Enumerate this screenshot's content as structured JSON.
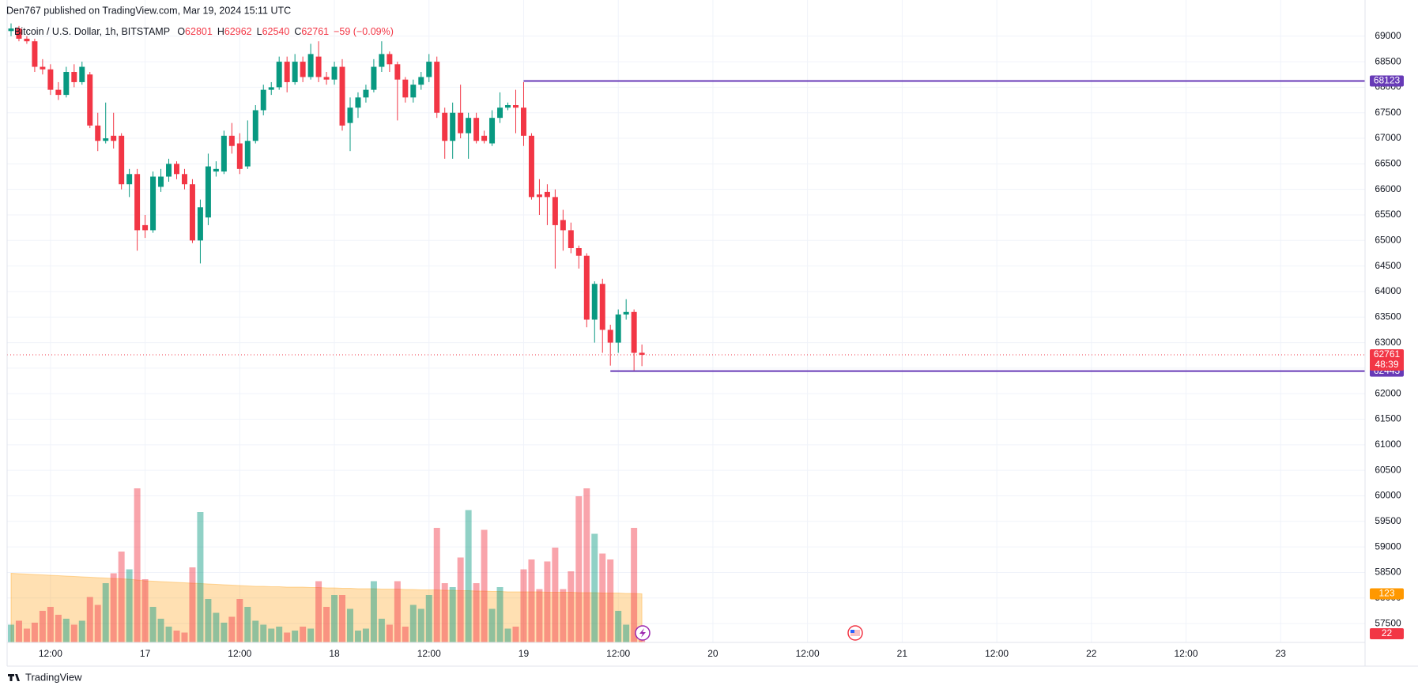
{
  "chart_data": {
    "type": "candlestick",
    "attribution": "Den767 published on TradingView.com, Mar 19, 2024 15:11 UTC",
    "title": "Bitcoin / U.S. Dollar, 1h, BITSTAMP",
    "ohlc_prefixes": [
      "O",
      "H",
      "L",
      "C"
    ],
    "change": "−59 (−0.09%)",
    "countdown": "48:39",
    "brand": "TradingView",
    "up_color": "#089981",
    "down_color": "#f23645",
    "ma_color": "#ff9800",
    "grid": true,
    "xlim": [
      6.5,
      178.7
    ],
    "xticks": [
      {
        "value": 12,
        "label": "12:00"
      },
      {
        "value": 24,
        "label": "17"
      },
      {
        "value": 36,
        "label": "12:00"
      },
      {
        "value": 48,
        "label": "18"
      },
      {
        "value": 60,
        "label": "12:00"
      },
      {
        "value": 72,
        "label": "19"
      },
      {
        "value": 84,
        "label": "12:00"
      },
      {
        "value": 96,
        "label": "20"
      },
      {
        "value": 108,
        "label": "12:00"
      },
      {
        "value": 120,
        "label": "21"
      },
      {
        "value": 132,
        "label": "12:00"
      },
      {
        "value": 144,
        "label": "22"
      },
      {
        "value": 156,
        "label": "12:00"
      },
      {
        "value": 168,
        "label": "23"
      }
    ],
    "ylim": [
      57130,
      69708
    ],
    "yticks": [
      57500,
      58000,
      58500,
      59000,
      59500,
      60000,
      60500,
      61000,
      61500,
      62000,
      62500,
      63000,
      63500,
      64000,
      64500,
      65000,
      65500,
      66000,
      66500,
      67000,
      67500,
      68000,
      68500,
      69000
    ],
    "vlim": [
      0,
      420
    ],
    "hlines": [
      {
        "value": 68123,
        "from": 72,
        "color": "#673ab7"
      },
      {
        "value": 62443,
        "from": 83,
        "color": "#673ab7"
      }
    ],
    "x": [
      7,
      8,
      9,
      10,
      11,
      12,
      13,
      14,
      15,
      16,
      17,
      18,
      19,
      20,
      21,
      22,
      23,
      24,
      25,
      26,
      27,
      28,
      29,
      30,
      31,
      32,
      33,
      34,
      35,
      36,
      37,
      38,
      39,
      40,
      41,
      42,
      43,
      44,
      45,
      46,
      47,
      48,
      49,
      50,
      51,
      52,
      53,
      54,
      55,
      56,
      57,
      58,
      59,
      60,
      61,
      62,
      63,
      64,
      65,
      66,
      67,
      68,
      69,
      70,
      71,
      72,
      73,
      74,
      75,
      76,
      77,
      78,
      79,
      80,
      81,
      82,
      83,
      84,
      85,
      86,
      87
    ],
    "ohlc": [
      [
        69100,
        69250,
        69000,
        69150
      ],
      [
        69150,
        69200,
        68900,
        68950
      ],
      [
        68950,
        69000,
        68850,
        68900
      ],
      [
        68900,
        68950,
        68300,
        68400
      ],
      [
        68400,
        68550,
        68250,
        68350
      ],
      [
        68350,
        68450,
        67850,
        67950
      ],
      [
        67950,
        68100,
        67750,
        67850
      ],
      [
        67850,
        68400,
        67800,
        68300
      ],
      [
        68300,
        68450,
        68000,
        68100
      ],
      [
        68100,
        68500,
        68050,
        68400
      ],
      [
        68250,
        68300,
        67200,
        67250
      ],
      [
        67250,
        67500,
        66750,
        66950
      ],
      [
        66950,
        67700,
        66900,
        67000
      ],
      [
        67050,
        67500,
        66800,
        66950
      ],
      [
        67050,
        67100,
        66000,
        66100
      ],
      [
        66100,
        66400,
        65850,
        66300
      ],
      [
        66300,
        66400,
        64800,
        65200
      ],
      [
        65300,
        65500,
        65050,
        65200
      ],
      [
        65200,
        66350,
        65150,
        66250
      ],
      [
        66050,
        66400,
        65950,
        66250
      ],
      [
        66250,
        66600,
        66150,
        66500
      ],
      [
        66500,
        66550,
        66200,
        66300
      ],
      [
        66300,
        66400,
        66000,
        66100
      ],
      [
        66100,
        66200,
        64950,
        65000
      ],
      [
        65000,
        65800,
        64550,
        65650
      ],
      [
        65450,
        66700,
        65300,
        66450
      ],
      [
        66350,
        66550,
        66250,
        66400
      ],
      [
        66350,
        67150,
        66300,
        67050
      ],
      [
        67050,
        67300,
        66700,
        66850
      ],
      [
        66900,
        67100,
        66300,
        66400
      ],
      [
        66450,
        67350,
        66400,
        66950
      ],
      [
        66950,
        67650,
        66900,
        67550
      ],
      [
        67550,
        68050,
        67450,
        67950
      ],
      [
        67950,
        68100,
        67850,
        68000
      ],
      [
        68000,
        68600,
        67950,
        68500
      ],
      [
        68500,
        68600,
        67900,
        68100
      ],
      [
        68100,
        68650,
        68050,
        68500
      ],
      [
        68500,
        68600,
        68100,
        68200
      ],
      [
        68200,
        68850,
        68150,
        68650
      ],
      [
        68600,
        68900,
        68100,
        68200
      ],
      [
        68200,
        68300,
        68050,
        68150
      ],
      [
        68150,
        68500,
        68050,
        68400
      ],
      [
        68400,
        68550,
        67150,
        67250
      ],
      [
        67300,
        67800,
        66750,
        67600
      ],
      [
        67600,
        67900,
        67400,
        67800
      ],
      [
        67800,
        68050,
        67700,
        67950
      ],
      [
        67950,
        68550,
        67900,
        68400
      ],
      [
        68400,
        68900,
        68300,
        68650
      ],
      [
        68650,
        68700,
        68300,
        68450
      ],
      [
        68450,
        68500,
        67350,
        68150
      ],
      [
        68150,
        68200,
        67700,
        67800
      ],
      [
        67800,
        68150,
        67700,
        68050
      ],
      [
        68050,
        68300,
        67950,
        68200
      ],
      [
        68200,
        68650,
        68100,
        68500
      ],
      [
        68500,
        68600,
        67400,
        67500
      ],
      [
        67500,
        67600,
        66600,
        66950
      ],
      [
        66950,
        67700,
        66600,
        67500
      ],
      [
        67500,
        68050,
        67000,
        67100
      ],
      [
        67100,
        67500,
        66600,
        67400
      ],
      [
        67400,
        67500,
        66900,
        66950
      ],
      [
        67050,
        67150,
        66900,
        66950
      ],
      [
        66900,
        67550,
        66850,
        67400
      ],
      [
        67400,
        67900,
        67300,
        67600
      ],
      [
        67600,
        67700,
        67550,
        67650
      ],
      [
        67650,
        67950,
        67100,
        67600
      ],
      [
        67600,
        68100,
        66850,
        67050
      ],
      [
        67050,
        67100,
        65800,
        65850
      ],
      [
        65900,
        66200,
        65500,
        65850
      ],
      [
        65950,
        66100,
        65300,
        65850
      ],
      [
        65850,
        66000,
        64450,
        65300
      ],
      [
        65400,
        65600,
        64800,
        65200
      ],
      [
        65200,
        65350,
        64750,
        64850
      ],
      [
        64850,
        64900,
        64450,
        64700
      ],
      [
        64700,
        64750,
        63300,
        63450
      ],
      [
        63450,
        64200,
        63000,
        64150
      ],
      [
        64150,
        64250,
        62800,
        63250
      ],
      [
        63250,
        63350,
        62550,
        63000
      ],
      [
        63000,
        63650,
        62800,
        63550
      ],
      [
        63550,
        63850,
        63450,
        63600
      ],
      [
        63600,
        63650,
        62450,
        62800
      ],
      [
        62801,
        62962,
        62540,
        62761
      ]
    ],
    "volume": [
      45,
      55,
      35,
      50,
      80,
      90,
      70,
      60,
      45,
      55,
      115,
      95,
      150,
      175,
      230,
      185,
      390,
      160,
      90,
      60,
      40,
      30,
      25,
      190,
      330,
      110,
      75,
      50,
      65,
      110,
      90,
      55,
      45,
      35,
      40,
      25,
      30,
      40,
      35,
      155,
      90,
      120,
      120,
      85,
      30,
      35,
      155,
      60,
      45,
      155,
      40,
      95,
      85,
      120,
      290,
      150,
      140,
      215,
      335,
      150,
      285,
      85,
      140,
      35,
      40,
      185,
      210,
      135,
      205,
      240,
      135,
      180,
      370,
      390,
      275,
      225,
      210,
      80,
      45,
      290,
      22
    ],
    "volume_ma": [
      175,
      174,
      173,
      172,
      171,
      170,
      169,
      168,
      167,
      166,
      165,
      164,
      163,
      162,
      161,
      160,
      158,
      156,
      155,
      154,
      153,
      152,
      151,
      150,
      149,
      148,
      147,
      146,
      145,
      144,
      143,
      142,
      142,
      141,
      141,
      140,
      140,
      140,
      139,
      139,
      138,
      138,
      137,
      137,
      136,
      136,
      136,
      135,
      135,
      135,
      134,
      134,
      133,
      133,
      133,
      132,
      132,
      131,
      131,
      130,
      130,
      129,
      129,
      128,
      128,
      128,
      128,
      128,
      127,
      127,
      127,
      127,
      126,
      126,
      126,
      125,
      125,
      125,
      124,
      124,
      123
    ]
  }
}
